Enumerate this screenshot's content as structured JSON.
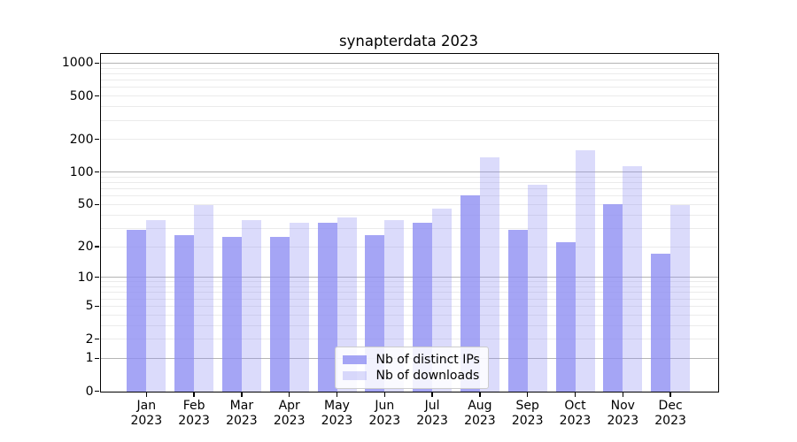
{
  "window": {
    "background": "#ffffff"
  },
  "chart_data": {
    "type": "bar",
    "title": "synapterdata 2023",
    "categories": [
      "Jan",
      "Feb",
      "Mar",
      "Apr",
      "May",
      "Jun",
      "Jul",
      "Aug",
      "Sep",
      "Oct",
      "Nov",
      "Dec"
    ],
    "x_year_label": "2023",
    "series": [
      {
        "name": "Nb of distinct IPs",
        "color": "#8c8cf2",
        "alpha": 0.78,
        "values": [
          29,
          26,
          25,
          25,
          34,
          26,
          34,
          61,
          29,
          22,
          50,
          17
        ]
      },
      {
        "name": "Nb of downloads",
        "color": "#8c8cf2",
        "alpha": 0.31,
        "values": [
          36,
          49,
          36,
          34,
          38,
          36,
          46,
          137,
          77,
          158,
          114,
          49
        ]
      }
    ],
    "xlabel": "",
    "ylabel": "",
    "y_axis": {
      "scale": "log10(1+value)",
      "tick_values": [
        0,
        1,
        2,
        5,
        10,
        20,
        50,
        100,
        200,
        500,
        1000
      ],
      "tick_labels": [
        "0",
        "1",
        "2",
        "5",
        "10",
        "20",
        "50",
        "100",
        "200",
        "500",
        "1000"
      ],
      "major_gridlines": [
        1,
        10,
        100,
        1000
      ],
      "minor_gridlines": [
        2,
        3,
        4,
        5,
        6,
        7,
        8,
        9,
        20,
        30,
        40,
        50,
        60,
        70,
        80,
        90,
        200,
        300,
        400,
        500,
        600,
        700,
        800,
        900
      ],
      "ylim": [
        0,
        1236
      ],
      "grid": "on"
    },
    "legend": {
      "position": "lower center",
      "entries": [
        "Nb of distinct IPs",
        "Nb of downloads"
      ]
    },
    "colors": {
      "major_grid": "#b4b4b4",
      "minor_grid": "#ebebeb",
      "axis": "#000000",
      "background": "#ffffff"
    }
  }
}
